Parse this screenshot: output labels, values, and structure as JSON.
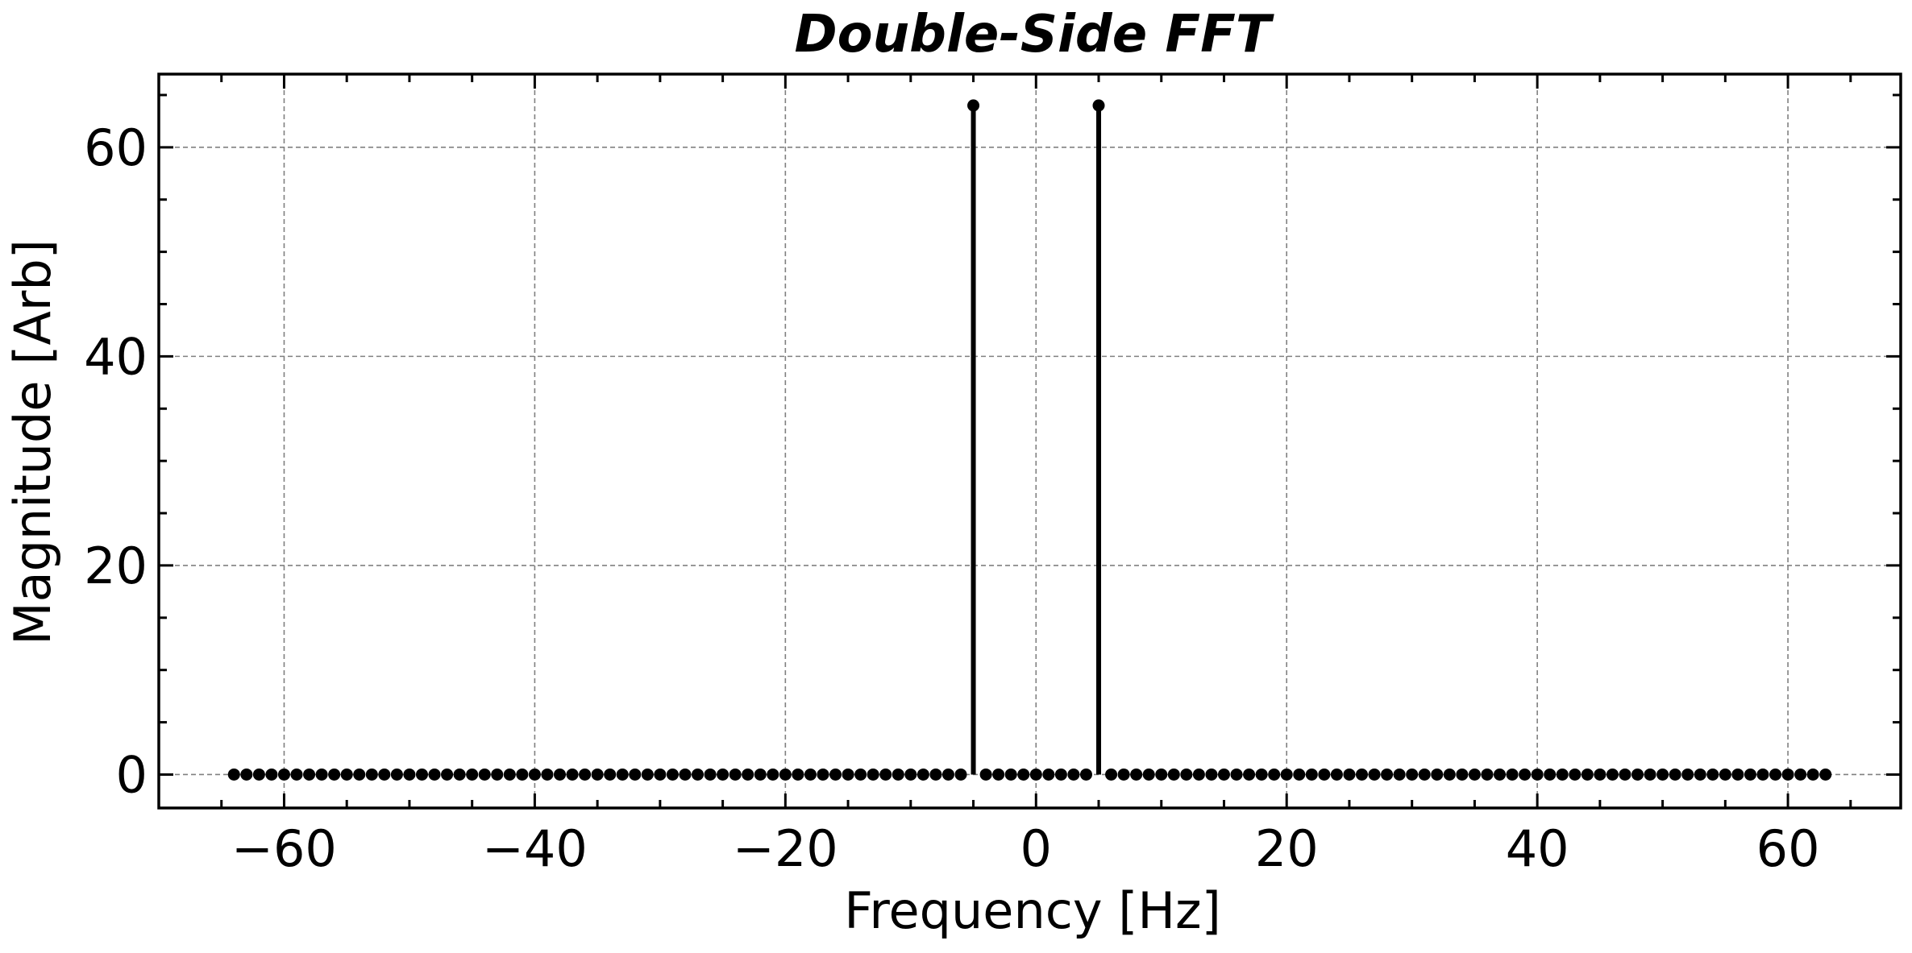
{
  "chart_data": {
    "type": "stem",
    "title": "Double-Side FFT",
    "xlabel": "Frequency [Hz]",
    "ylabel": "Magnitude [Arb]",
    "xlim": [
      -70,
      69
    ],
    "ylim": [
      -3.2,
      67
    ],
    "xticks": [
      -60,
      -40,
      -20,
      0,
      20,
      40,
      60
    ],
    "xtick_labels": [
      "−60",
      "−40",
      "−20",
      "0",
      "20",
      "40",
      "60"
    ],
    "yticks": [
      0,
      20,
      40,
      60
    ],
    "ytick_labels": [
      "0",
      "20",
      "40",
      "60"
    ],
    "x_minor_step": 5,
    "y_minor_step": 5,
    "grid": true,
    "color": "#000000",
    "series": [
      {
        "x_start": -64,
        "x_end": 63,
        "x_step": 1,
        "baseline_value": 0,
        "peaks": [
          {
            "x": -5,
            "y": 64
          },
          {
            "x": 5,
            "y": 64
          }
        ]
      }
    ]
  }
}
